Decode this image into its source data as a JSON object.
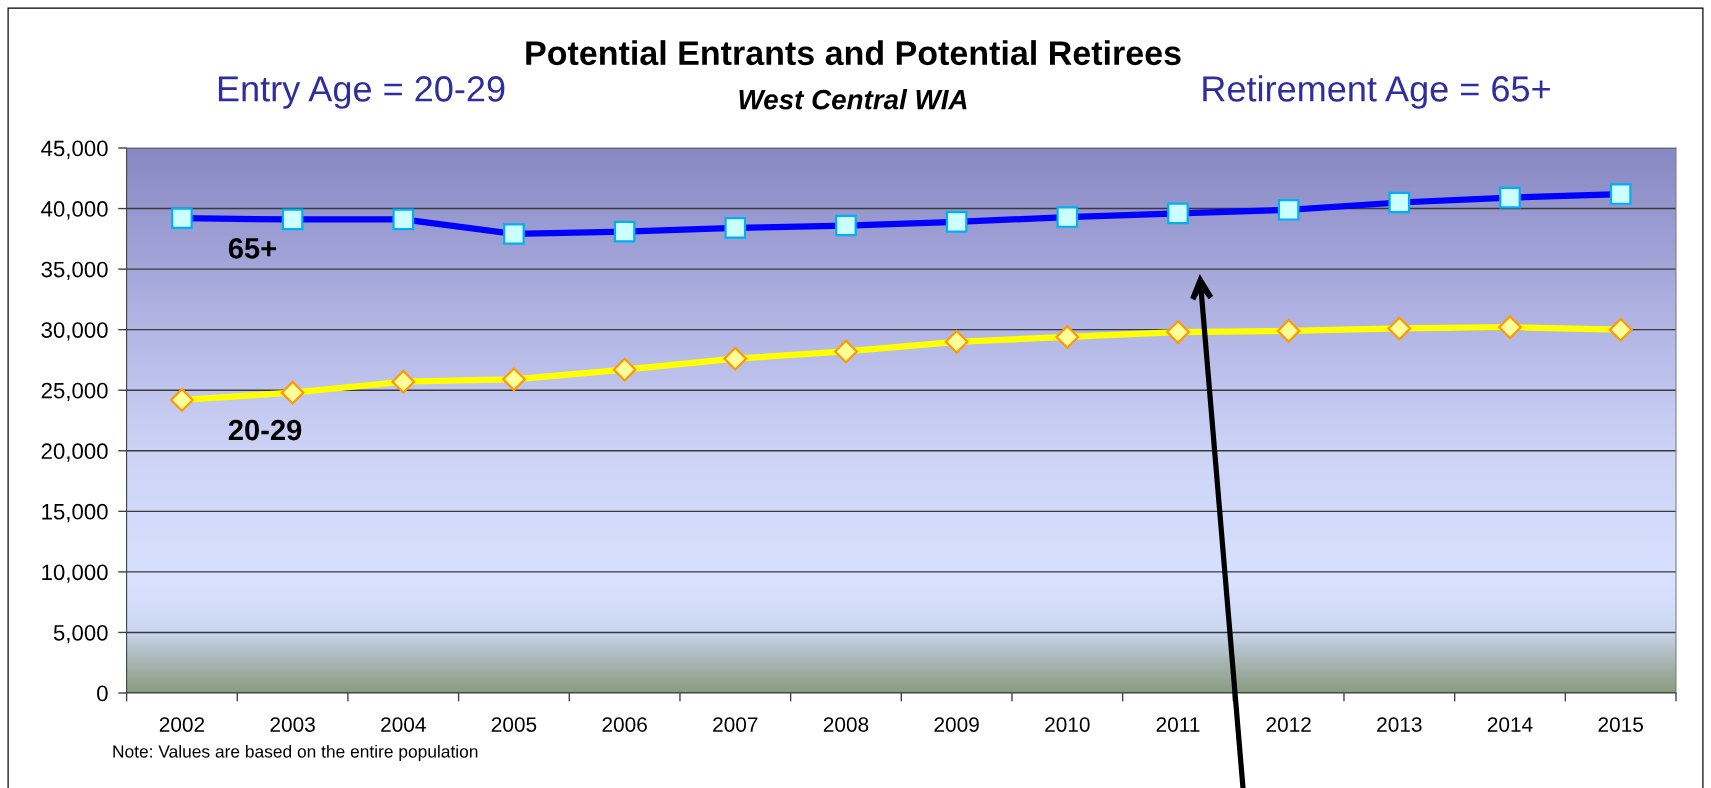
{
  "chart_data": {
    "type": "line",
    "title": "Potential Entrants and Potential Retirees",
    "subtitle": "West Central WIA",
    "annotations": [
      "Entry Age = 20-29",
      "Retirement Age = 65+",
      "Note: Values are based on the entire population"
    ],
    "categories": [
      "2002",
      "2003",
      "2004",
      "2005",
      "2006",
      "2007",
      "2008",
      "2009",
      "2010",
      "2011",
      "2012",
      "2013",
      "2014",
      "2015"
    ],
    "series": [
      {
        "name": "65+",
        "color": "#0000ff",
        "marker": "square",
        "values": [
          39200,
          39100,
          39100,
          37900,
          38100,
          38400,
          38600,
          38900,
          39300,
          39600,
          39900,
          40500,
          40900,
          41200
        ]
      },
      {
        "name": "20-29",
        "color": "#ffff00",
        "marker": "diamond",
        "values": [
          24200,
          24800,
          25700,
          25900,
          26700,
          27600,
          28200,
          29000,
          29400,
          29800,
          29900,
          30100,
          30200,
          30000
        ]
      }
    ],
    "ylim": [
      0,
      45000
    ],
    "yticks": [
      0,
      {
        "value": 5000,
        "label": "5,000"
      },
      {
        "value": 10000,
        "label": "10,000"
      },
      {
        "value": 15000,
        "label": "15,000"
      },
      {
        "value": 20000,
        "label": "20,000"
      },
      {
        "value": 25000,
        "label": "25,000"
      },
      {
        "value": 30000,
        "label": "30,000"
      },
      {
        "value": 35000,
        "label": "35,000"
      },
      {
        "value": 40000,
        "label": "40,000"
      },
      {
        "value": 45000,
        "label": "45,000"
      }
    ],
    "grid": "y",
    "legend": false
  }
}
